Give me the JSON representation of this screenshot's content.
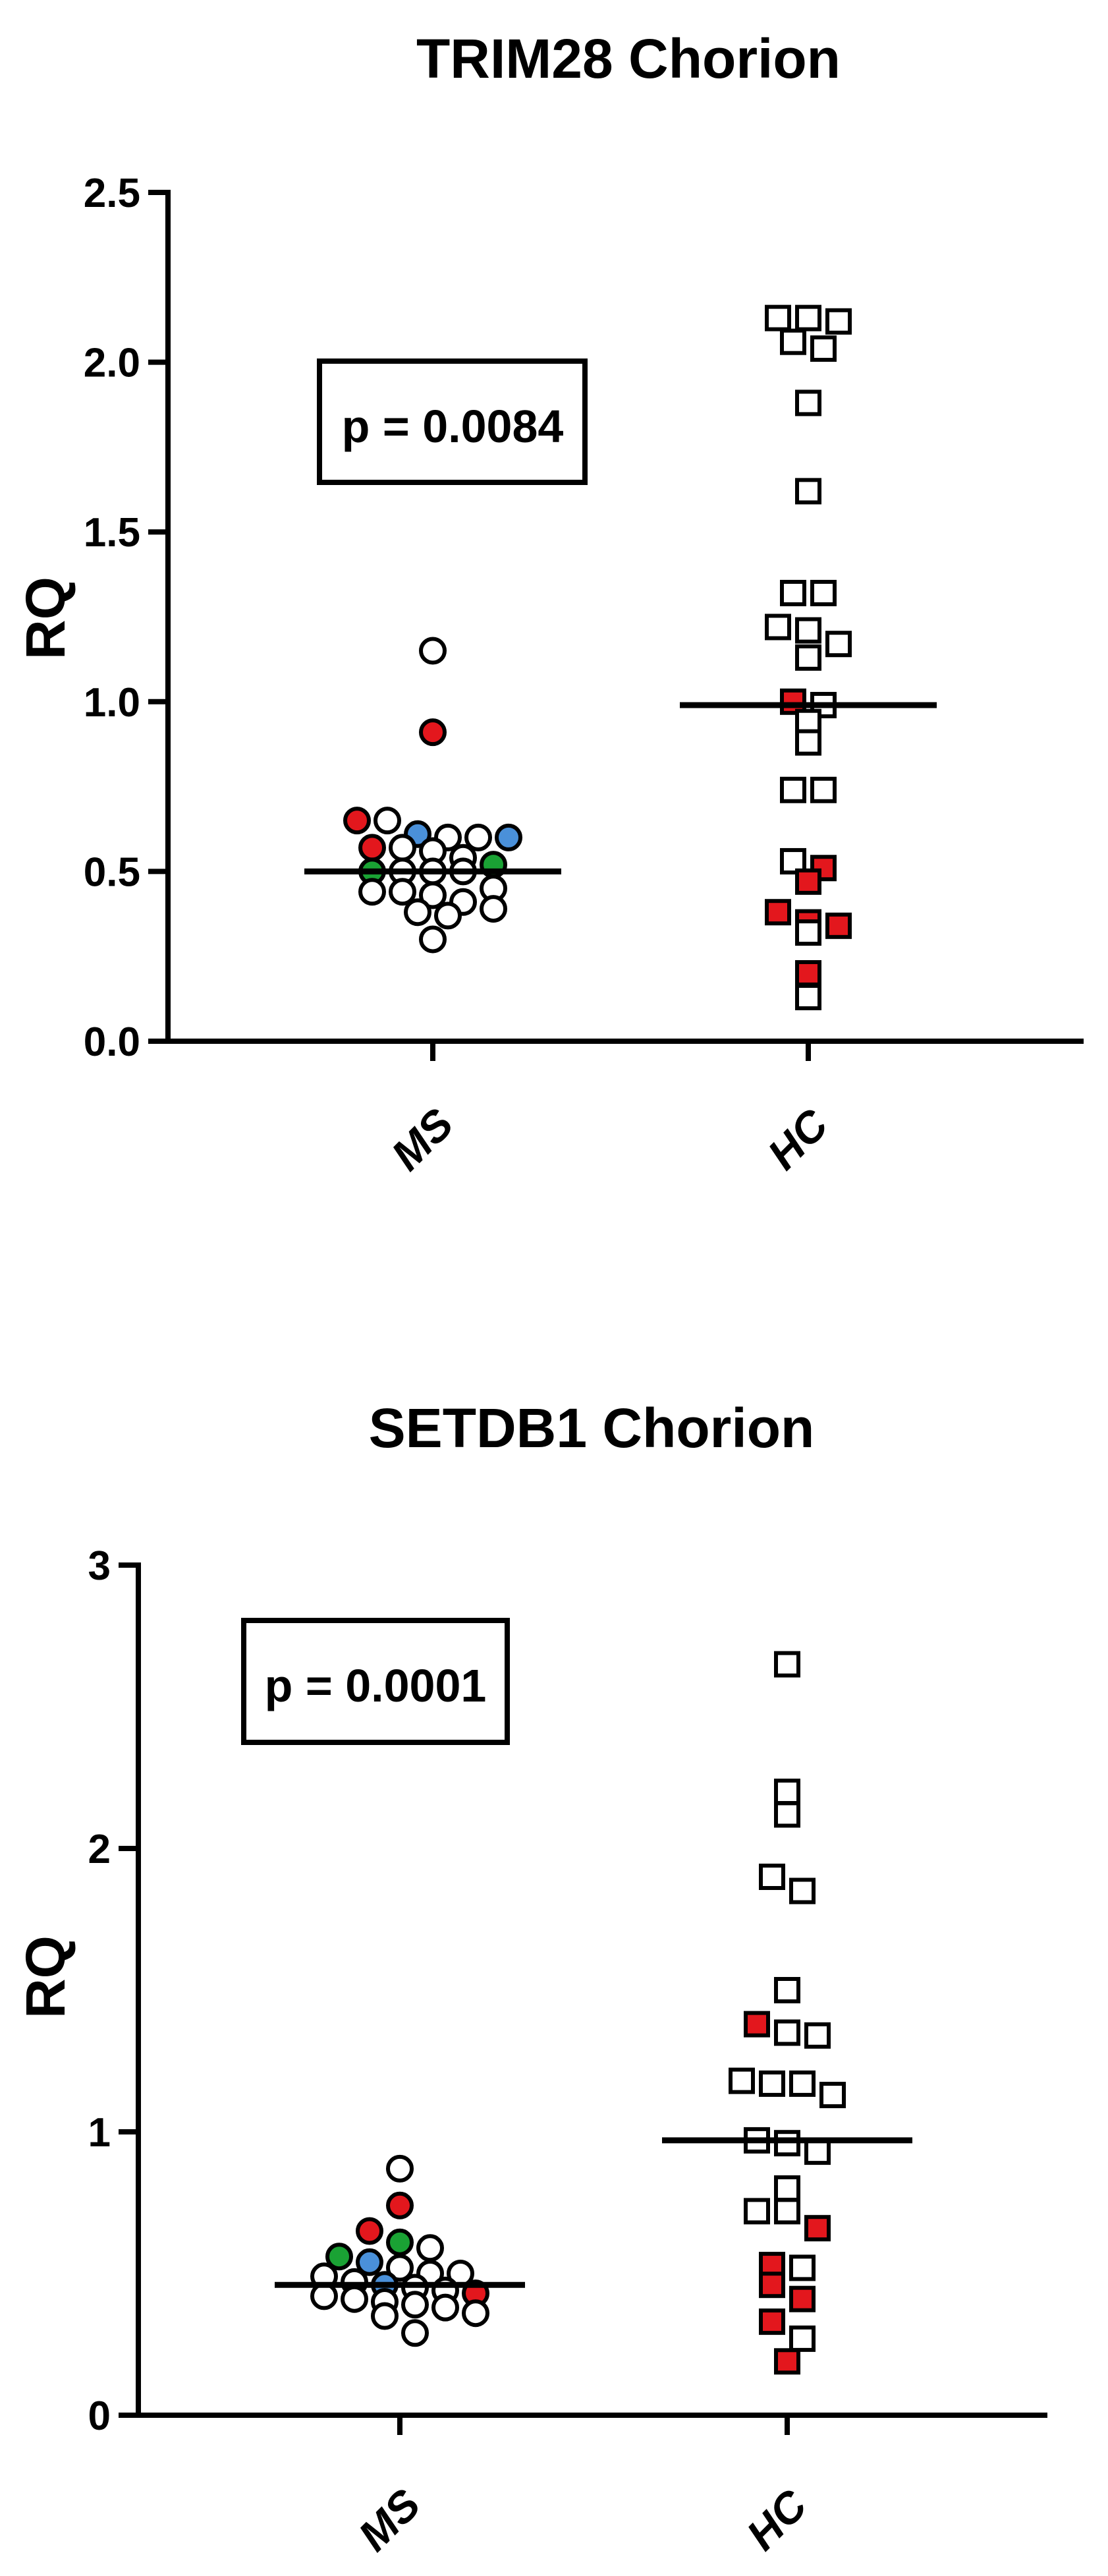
{
  "colors": {
    "open_fill": "#ffffff",
    "red": "#e3171d",
    "blue": "#4a90d9",
    "green": "#1aa234",
    "ink": "#000000"
  },
  "chart_data": [
    {
      "type": "scatter",
      "title": "TRIM28 Chorion",
      "ylabel": "RQ",
      "ylim": [
        0,
        2.5
      ],
      "yticks": [
        "0.0",
        "0.5",
        "1.0",
        "1.5",
        "2.0",
        "2.5"
      ],
      "categories": [
        "MS",
        "HC"
      ],
      "annotation": "p = 0.0084",
      "series": [
        {
          "category": "MS",
          "marker": "circle",
          "median": 0.5,
          "points": [
            {
              "y": 1.15,
              "color": "open"
            },
            {
              "y": 0.91,
              "color": "red"
            },
            {
              "y": 0.65,
              "color": "red"
            },
            {
              "y": 0.65,
              "color": "open"
            },
            {
              "y": 0.61,
              "color": "blue"
            },
            {
              "y": 0.6,
              "color": "open"
            },
            {
              "y": 0.6,
              "color": "open"
            },
            {
              "y": 0.6,
              "color": "blue"
            },
            {
              "y": 0.57,
              "color": "red"
            },
            {
              "y": 0.57,
              "color": "open"
            },
            {
              "y": 0.56,
              "color": "open"
            },
            {
              "y": 0.54,
              "color": "open"
            },
            {
              "y": 0.52,
              "color": "green"
            },
            {
              "y": 0.5,
              "color": "green"
            },
            {
              "y": 0.5,
              "color": "open"
            },
            {
              "y": 0.5,
              "color": "open"
            },
            {
              "y": 0.5,
              "color": "open"
            },
            {
              "y": 0.45,
              "color": "open"
            },
            {
              "y": 0.44,
              "color": "open"
            },
            {
              "y": 0.44,
              "color": "open"
            },
            {
              "y": 0.43,
              "color": "open"
            },
            {
              "y": 0.41,
              "color": "open"
            },
            {
              "y": 0.39,
              "color": "open"
            },
            {
              "y": 0.38,
              "color": "open"
            },
            {
              "y": 0.37,
              "color": "open"
            },
            {
              "y": 0.3,
              "color": "open"
            }
          ]
        },
        {
          "category": "HC",
          "marker": "square",
          "median": 0.99,
          "points": [
            {
              "y": 2.13,
              "color": "open"
            },
            {
              "y": 2.13,
              "color": "open"
            },
            {
              "y": 2.12,
              "color": "open"
            },
            {
              "y": 2.06,
              "color": "open"
            },
            {
              "y": 2.04,
              "color": "open"
            },
            {
              "y": 1.88,
              "color": "open"
            },
            {
              "y": 1.62,
              "color": "open"
            },
            {
              "y": 1.32,
              "color": "open"
            },
            {
              "y": 1.32,
              "color": "open"
            },
            {
              "y": 1.22,
              "color": "open"
            },
            {
              "y": 1.21,
              "color": "open"
            },
            {
              "y": 1.17,
              "color": "open"
            },
            {
              "y": 1.13,
              "color": "open"
            },
            {
              "y": 1.0,
              "color": "red"
            },
            {
              "y": 0.99,
              "color": "open"
            },
            {
              "y": 0.94,
              "color": "open"
            },
            {
              "y": 0.88,
              "color": "open"
            },
            {
              "y": 0.74,
              "color": "open"
            },
            {
              "y": 0.74,
              "color": "open"
            },
            {
              "y": 0.53,
              "color": "open"
            },
            {
              "y": 0.51,
              "color": "red"
            },
            {
              "y": 0.47,
              "color": "red"
            },
            {
              "y": 0.38,
              "color": "red"
            },
            {
              "y": 0.35,
              "color": "red"
            },
            {
              "y": 0.34,
              "color": "red"
            },
            {
              "y": 0.32,
              "color": "open"
            },
            {
              "y": 0.2,
              "color": "red"
            },
            {
              "y": 0.13,
              "color": "open"
            }
          ]
        }
      ]
    },
    {
      "type": "scatter",
      "title": "SETDB1 Chorion",
      "ylabel": "RQ",
      "ylim": [
        0,
        3
      ],
      "yticks": [
        "0",
        "1",
        "2",
        "3"
      ],
      "categories": [
        "MS",
        "HC"
      ],
      "annotation": "p = 0.0001",
      "series": [
        {
          "category": "MS",
          "marker": "circle",
          "median": 0.46,
          "points": [
            {
              "y": 0.87,
              "color": "open"
            },
            {
              "y": 0.74,
              "color": "red"
            },
            {
              "y": 0.65,
              "color": "red"
            },
            {
              "y": 0.61,
              "color": "green"
            },
            {
              "y": 0.59,
              "color": "open"
            },
            {
              "y": 0.56,
              "color": "green"
            },
            {
              "y": 0.54,
              "color": "blue"
            },
            {
              "y": 0.52,
              "color": "open"
            },
            {
              "y": 0.5,
              "color": "open"
            },
            {
              "y": 0.5,
              "color": "open"
            },
            {
              "y": 0.49,
              "color": "open"
            },
            {
              "y": 0.47,
              "color": "open"
            },
            {
              "y": 0.46,
              "color": "blue"
            },
            {
              "y": 0.45,
              "color": "open"
            },
            {
              "y": 0.44,
              "color": "open"
            },
            {
              "y": 0.43,
              "color": "red"
            },
            {
              "y": 0.42,
              "color": "open"
            },
            {
              "y": 0.41,
              "color": "open"
            },
            {
              "y": 0.4,
              "color": "open"
            },
            {
              "y": 0.39,
              "color": "open"
            },
            {
              "y": 0.38,
              "color": "open"
            },
            {
              "y": 0.36,
              "color": "open"
            },
            {
              "y": 0.35,
              "color": "open"
            },
            {
              "y": 0.29,
              "color": "open"
            }
          ]
        },
        {
          "category": "HC",
          "marker": "square",
          "median": 0.97,
          "points": [
            {
              "y": 2.65,
              "color": "open"
            },
            {
              "y": 2.2,
              "color": "open"
            },
            {
              "y": 2.12,
              "color": "open"
            },
            {
              "y": 1.9,
              "color": "open"
            },
            {
              "y": 1.85,
              "color": "open"
            },
            {
              "y": 1.5,
              "color": "open"
            },
            {
              "y": 1.38,
              "color": "red"
            },
            {
              "y": 1.35,
              "color": "open"
            },
            {
              "y": 1.34,
              "color": "open"
            },
            {
              "y": 1.18,
              "color": "open"
            },
            {
              "y": 1.17,
              "color": "open"
            },
            {
              "y": 1.17,
              "color": "open"
            },
            {
              "y": 1.13,
              "color": "open"
            },
            {
              "y": 0.97,
              "color": "open"
            },
            {
              "y": 0.96,
              "color": "open"
            },
            {
              "y": 0.93,
              "color": "open"
            },
            {
              "y": 0.8,
              "color": "open"
            },
            {
              "y": 0.72,
              "color": "open"
            },
            {
              "y": 0.72,
              "color": "open"
            },
            {
              "y": 0.66,
              "color": "red"
            },
            {
              "y": 0.53,
              "color": "red"
            },
            {
              "y": 0.52,
              "color": "open"
            },
            {
              "y": 0.46,
              "color": "red"
            },
            {
              "y": 0.41,
              "color": "red"
            },
            {
              "y": 0.33,
              "color": "red"
            },
            {
              "y": 0.27,
              "color": "open"
            },
            {
              "y": 0.19,
              "color": "red"
            }
          ]
        }
      ]
    }
  ]
}
